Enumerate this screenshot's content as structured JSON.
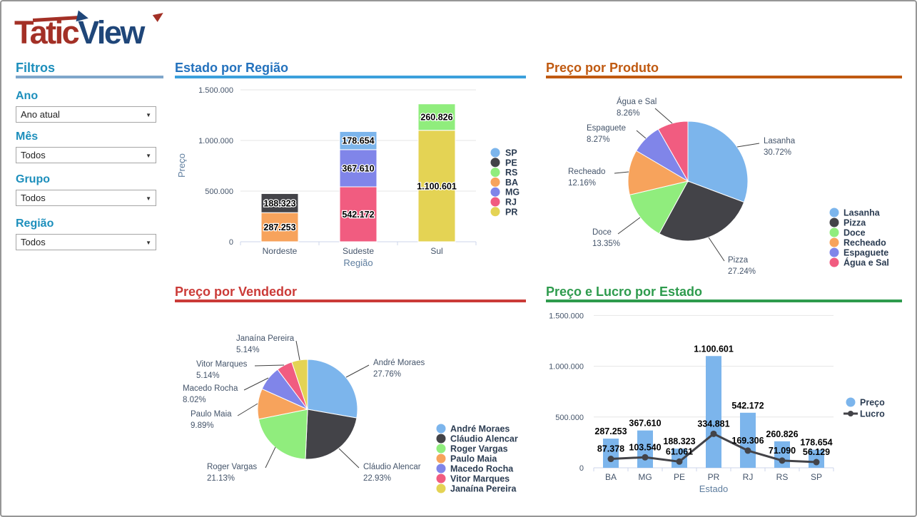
{
  "logo": {
    "part1": "Tatic",
    "part2": "View",
    "red": "#a33026",
    "blue": "#1f4679"
  },
  "filters": {
    "title": "Filtros",
    "accent_color": "#1d8fbc",
    "rule_color": "#7fa7cb",
    "groups": [
      {
        "label": "Ano",
        "value": "Ano atual"
      },
      {
        "label": "Mês",
        "value": "Todos"
      },
      {
        "label": "Grupo",
        "value": "Todos"
      },
      {
        "label": "Região",
        "value": "Todos"
      }
    ]
  },
  "chart_data": [
    {
      "id": "estado_por_regiao",
      "type": "bar",
      "stacked": true,
      "title": "Estado por Região",
      "title_color": "#2472bd",
      "underline_color": "#3ba0dc",
      "xlabel": "Região",
      "ylabel": "Preço",
      "ylim": [
        0,
        1500000
      ],
      "yticks": [
        "0",
        "500.000",
        "1.000.000",
        "1.500.000"
      ],
      "categories": [
        "Nordeste",
        "Sudeste",
        "Sul"
      ],
      "legend_position": "right",
      "grid": true,
      "series": [
        {
          "name": "SP",
          "color": "#7cb5ec",
          "values": [
            0,
            178654,
            0
          ]
        },
        {
          "name": "PE",
          "color": "#434348",
          "values": [
            188323,
            0,
            0
          ]
        },
        {
          "name": "RS",
          "color": "#90ed7d",
          "values": [
            0,
            0,
            260826
          ]
        },
        {
          "name": "BA",
          "color": "#f7a35c",
          "values": [
            287253,
            0,
            0
          ]
        },
        {
          "name": "MG",
          "color": "#8085e9",
          "values": [
            0,
            367610,
            0
          ]
        },
        {
          "name": "RJ",
          "color": "#f15c80",
          "values": [
            0,
            542172,
            0
          ]
        },
        {
          "name": "PR",
          "color": "#e4d354",
          "values": [
            0,
            0,
            1100601
          ]
        }
      ]
    },
    {
      "id": "preco_por_produto",
      "type": "pie",
      "title": "Preço por Produto",
      "title_color": "#c05a11",
      "underline_color": "#c05a11",
      "legend_position": "bottom-right",
      "slices": [
        {
          "name": "Lasanha",
          "pct": 30.72,
          "color": "#7cb5ec"
        },
        {
          "name": "Pizza",
          "pct": 27.24,
          "color": "#434348"
        },
        {
          "name": "Doce",
          "pct": 13.35,
          "color": "#90ed7d"
        },
        {
          "name": "Recheado",
          "pct": 12.16,
          "color": "#f7a35c"
        },
        {
          "name": "Espaguete",
          "pct": 8.27,
          "color": "#8085e9"
        },
        {
          "name": "Água e Sal",
          "pct": 8.26,
          "color": "#f15c80"
        }
      ]
    },
    {
      "id": "preco_por_vendedor",
      "type": "pie",
      "title": "Preço por Vendedor",
      "title_color": "#cb3b38",
      "underline_color": "#cb3b38",
      "legend_position": "bottom-right",
      "slices": [
        {
          "name": "André Moraes",
          "pct": 27.76,
          "color": "#7cb5ec"
        },
        {
          "name": "Cláudio Alencar",
          "pct": 22.93,
          "color": "#434348"
        },
        {
          "name": "Roger Vargas",
          "pct": 21.13,
          "color": "#90ed7d"
        },
        {
          "name": "Paulo Maia",
          "pct": 9.89,
          "color": "#f7a35c"
        },
        {
          "name": "Macedo Rocha",
          "pct": 8.02,
          "color": "#8085e9"
        },
        {
          "name": "Vitor Marques",
          "pct": 5.14,
          "color": "#f15c80"
        },
        {
          "name": "Janaína Pereira",
          "pct": 5.14,
          "color": "#e4d354"
        }
      ]
    },
    {
      "id": "preco_e_lucro_por_estado",
      "type": "bar-line",
      "title": "Preço e Lucro por Estado",
      "title_color": "#2e9b4d",
      "underline_color": "#2e9b4d",
      "xlabel": "Estado",
      "ylim": [
        0,
        1500000
      ],
      "yticks": [
        "0",
        "500.000",
        "1.000.000",
        "1.500.000"
      ],
      "categories": [
        "BA",
        "MG",
        "PE",
        "PR",
        "RJ",
        "RS",
        "SP"
      ],
      "legend_position": "right",
      "grid": true,
      "series": [
        {
          "name": "Preço",
          "type": "bar",
          "color": "#7cb5ec",
          "values": [
            287253,
            367610,
            188323,
            1100601,
            542172,
            260826,
            178654
          ]
        },
        {
          "name": "Lucro",
          "type": "line",
          "color": "#434348",
          "values": [
            87378,
            103540,
            61061,
            334881,
            169306,
            71090,
            56129
          ]
        }
      ]
    }
  ]
}
